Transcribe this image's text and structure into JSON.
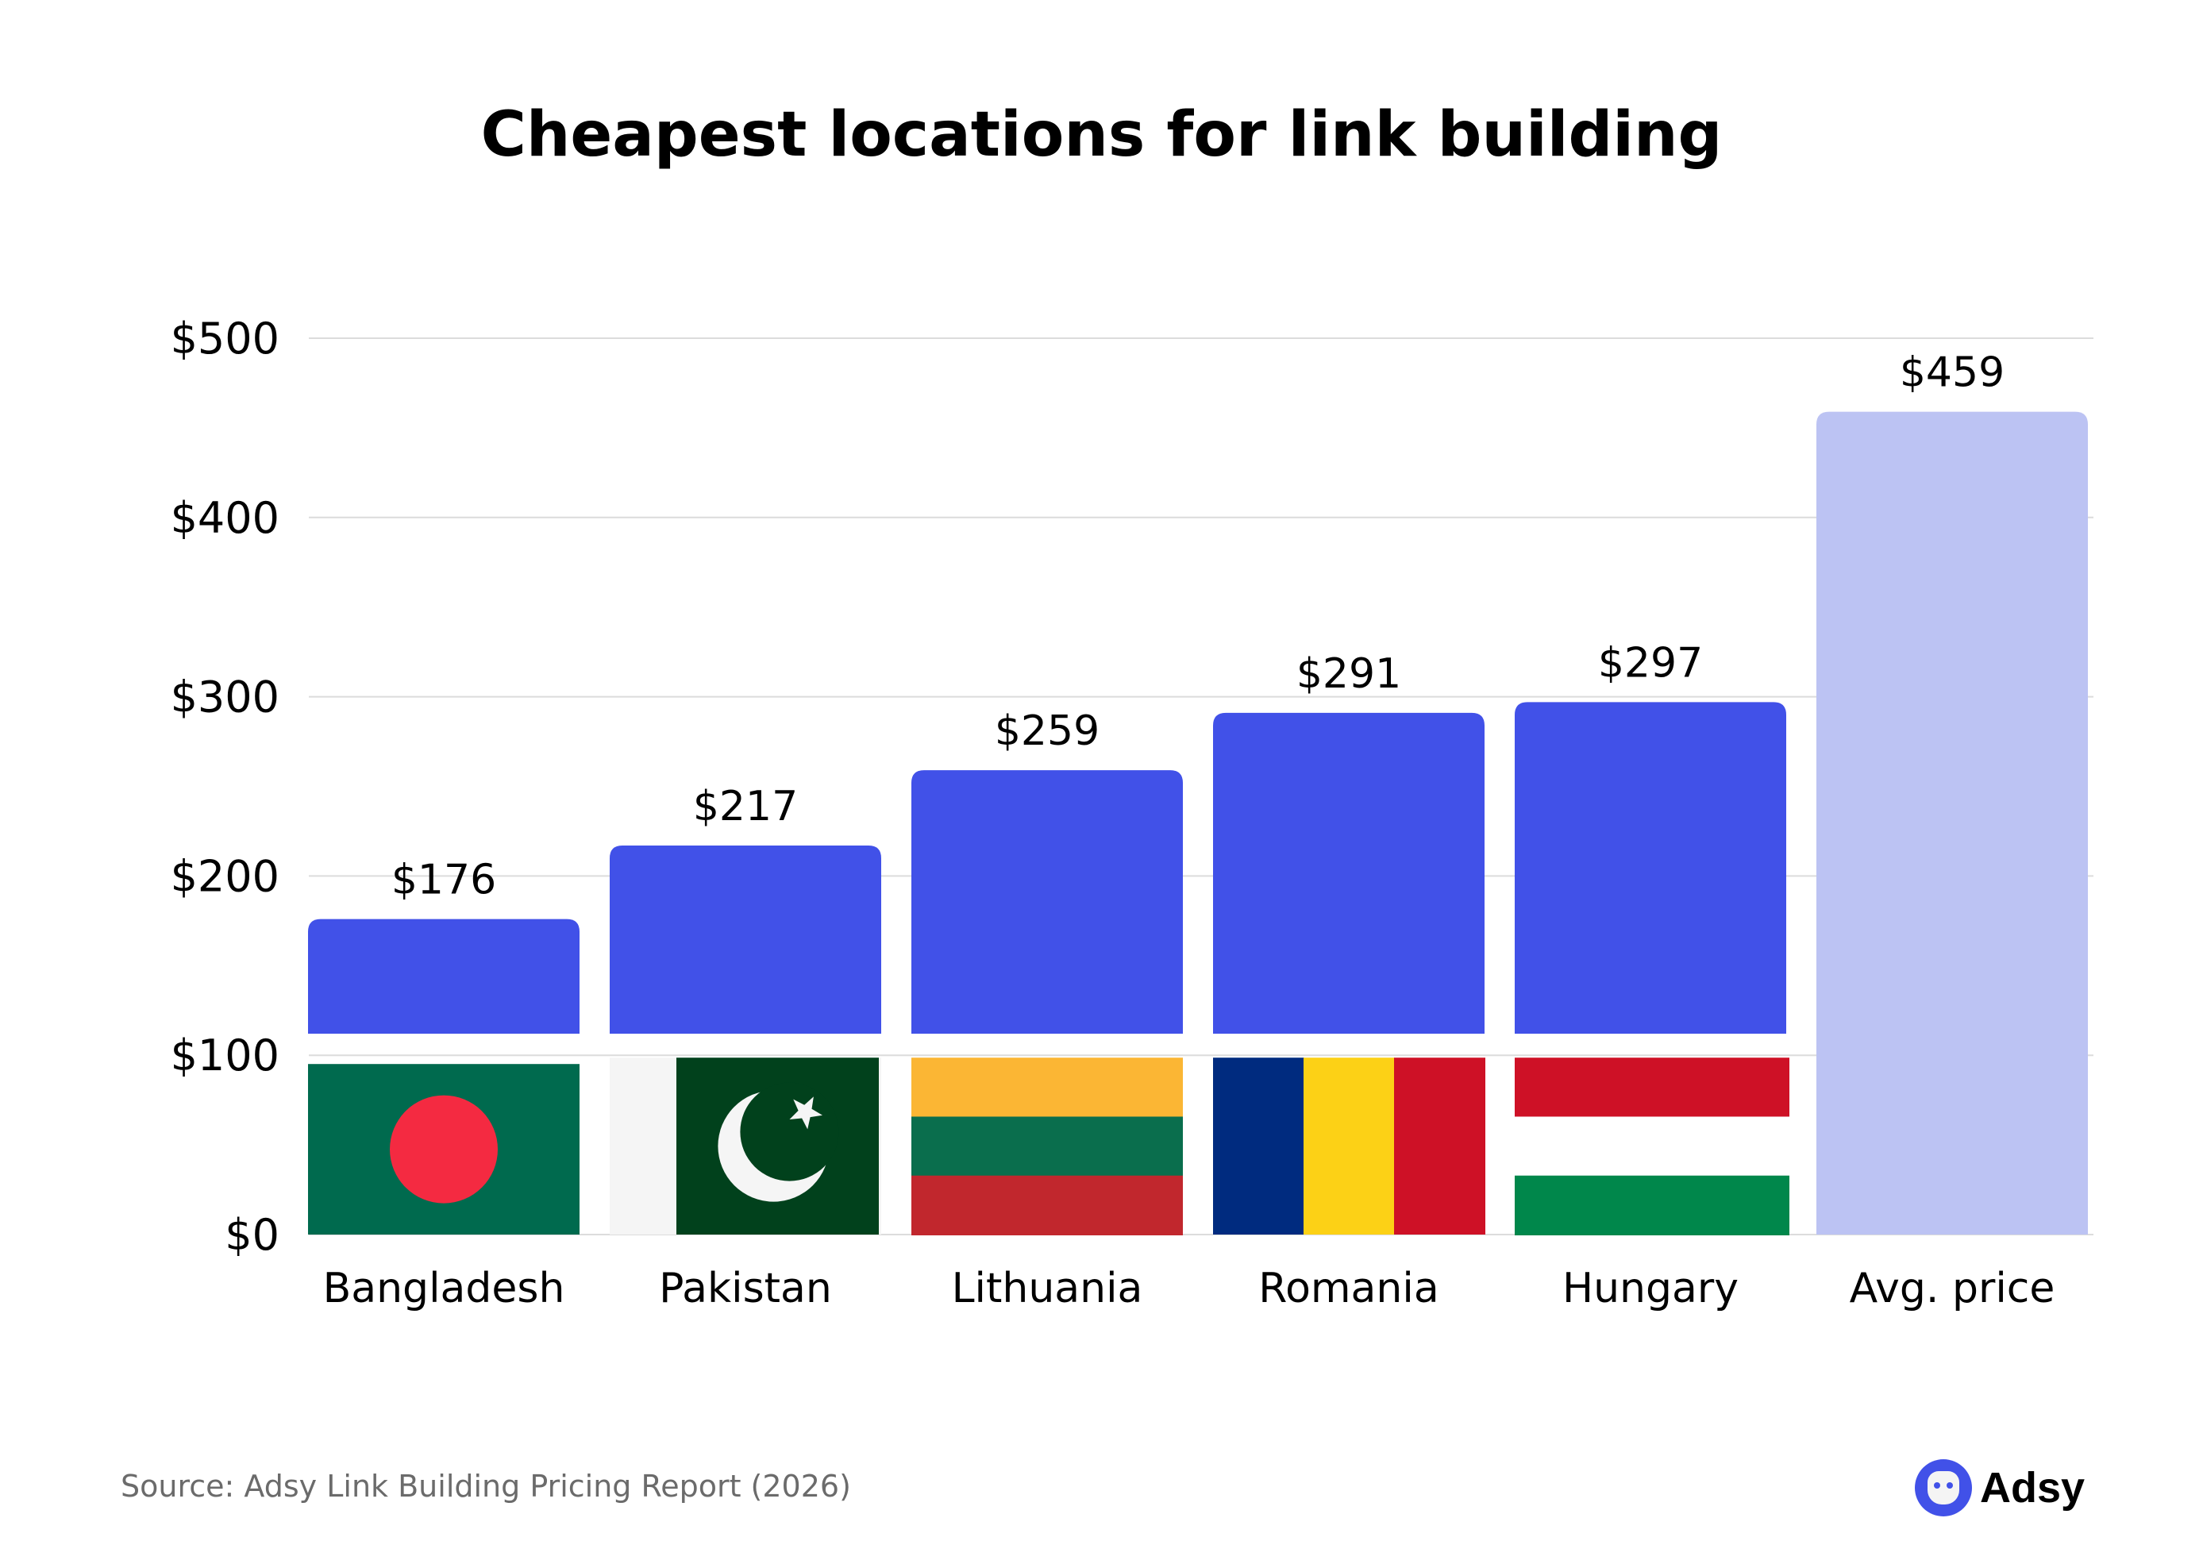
{
  "chart_data": {
    "type": "bar",
    "title": "Cheapest locations for link building",
    "categories": [
      "Bangladesh",
      "Pakistan",
      "Lithuania",
      "Romania",
      "Hungary",
      "Avg. price"
    ],
    "values": [
      176,
      217,
      259,
      291,
      297,
      459
    ],
    "value_labels": [
      "$176",
      "$217",
      "$259",
      "$291",
      "$297",
      "$459"
    ],
    "ylim": [
      0,
      500
    ],
    "yticks": [
      0,
      100,
      200,
      300,
      400,
      500
    ],
    "ytick_labels": [
      "$0",
      "$100",
      "$200",
      "$300",
      "$400",
      "$500"
    ],
    "grid": true,
    "xlabel": "",
    "ylabel": "",
    "colors": {
      "country_bar": "#4151e8",
      "average_bar": "#bcc3f3"
    },
    "flags": [
      "bangladesh-flag",
      "pakistan-flag",
      "lithuania-flag",
      "romania-flag",
      "hungary-flag",
      null
    ]
  },
  "source": "Source: Adsy Link Building Pricing Report (2026)",
  "logo": {
    "text": "Adsy"
  }
}
